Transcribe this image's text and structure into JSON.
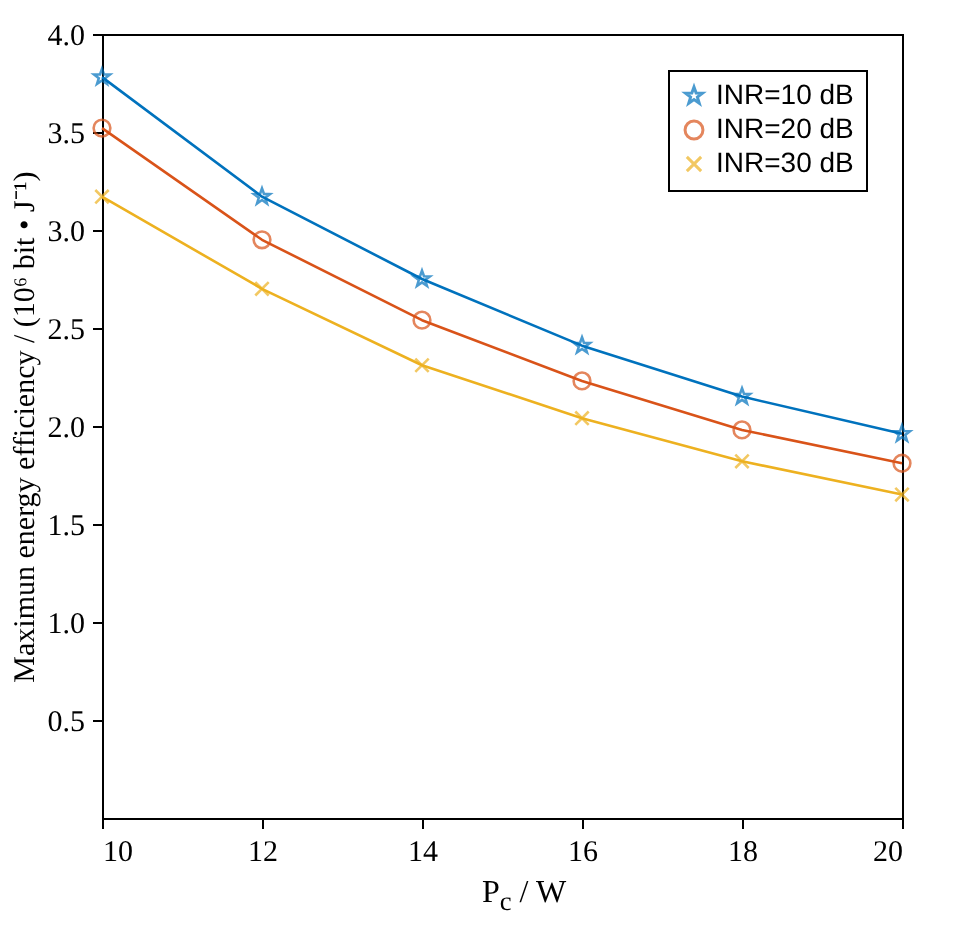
{
  "chart_data": {
    "type": "line",
    "xlabel": "P$_{c}$ / W",
    "ylabel": "Maximun energy efficiency / (10⁶ bit • J⁻¹)",
    "x": [
      10,
      12,
      14,
      16,
      18,
      20
    ],
    "xlim": [
      10,
      20
    ],
    "xticks": [
      10,
      12,
      14,
      16,
      18,
      20
    ],
    "ylim": [
      0,
      4
    ],
    "yticks": [
      0.5,
      {
        "value": 1,
        "label": "1.0"
      },
      1.5,
      {
        "value": 2,
        "label": "2.0"
      },
      2.5,
      {
        "value": 3,
        "label": "3.0"
      },
      3.5,
      {
        "value": 4,
        "label": "4.0"
      }
    ],
    "legend": "top right",
    "line_style": "solid",
    "series": [
      {
        "name": "INR=10 dB",
        "color": "#0072bd",
        "marker": "star",
        "values": [
          3.78,
          3.17,
          2.75,
          2.41,
          2.15,
          1.96
        ]
      },
      {
        "name": "INR=20 dB",
        "color": "#d95319",
        "marker": "circle",
        "values": [
          3.52,
          2.95,
          2.54,
          2.23,
          1.98,
          1.81
        ]
      },
      {
        "name": "INR=30 dB",
        "color": "#edb120",
        "marker": "cross",
        "values": [
          3.17,
          2.7,
          2.31,
          2.04,
          1.82,
          1.65
        ]
      }
    ]
  }
}
